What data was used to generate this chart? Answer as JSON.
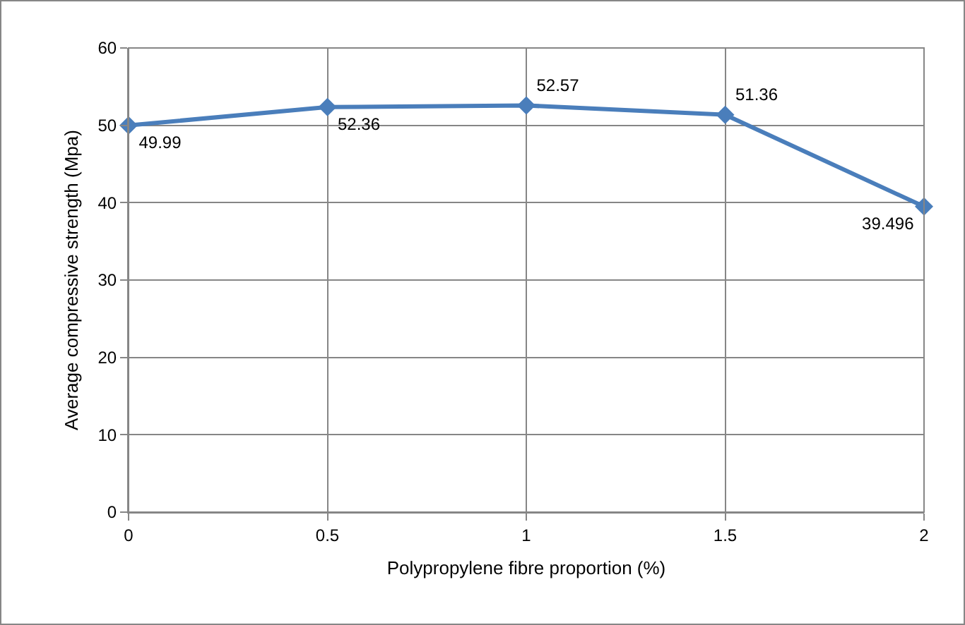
{
  "chart_data": {
    "type": "line",
    "xlabel": "Polypropylene fibre proportion (%)",
    "ylabel": "Average compressive strength (Mpa)",
    "x": [
      0,
      0.5,
      1,
      1.5,
      2
    ],
    "series": [
      {
        "color": "#4a7ebb",
        "values": [
          49.99,
          52.36,
          52.57,
          51.36,
          39.496
        ]
      }
    ],
    "xlim": [
      0,
      2
    ],
    "xticks": [
      0,
      0.5,
      1,
      1.5,
      2
    ],
    "ylim": [
      0,
      60
    ],
    "yticks": [
      0,
      10,
      20,
      30,
      40,
      50,
      60
    ],
    "grid": true,
    "marker": "diamond",
    "line_style": "solid",
    "data_labels": true,
    "legend": false
  }
}
